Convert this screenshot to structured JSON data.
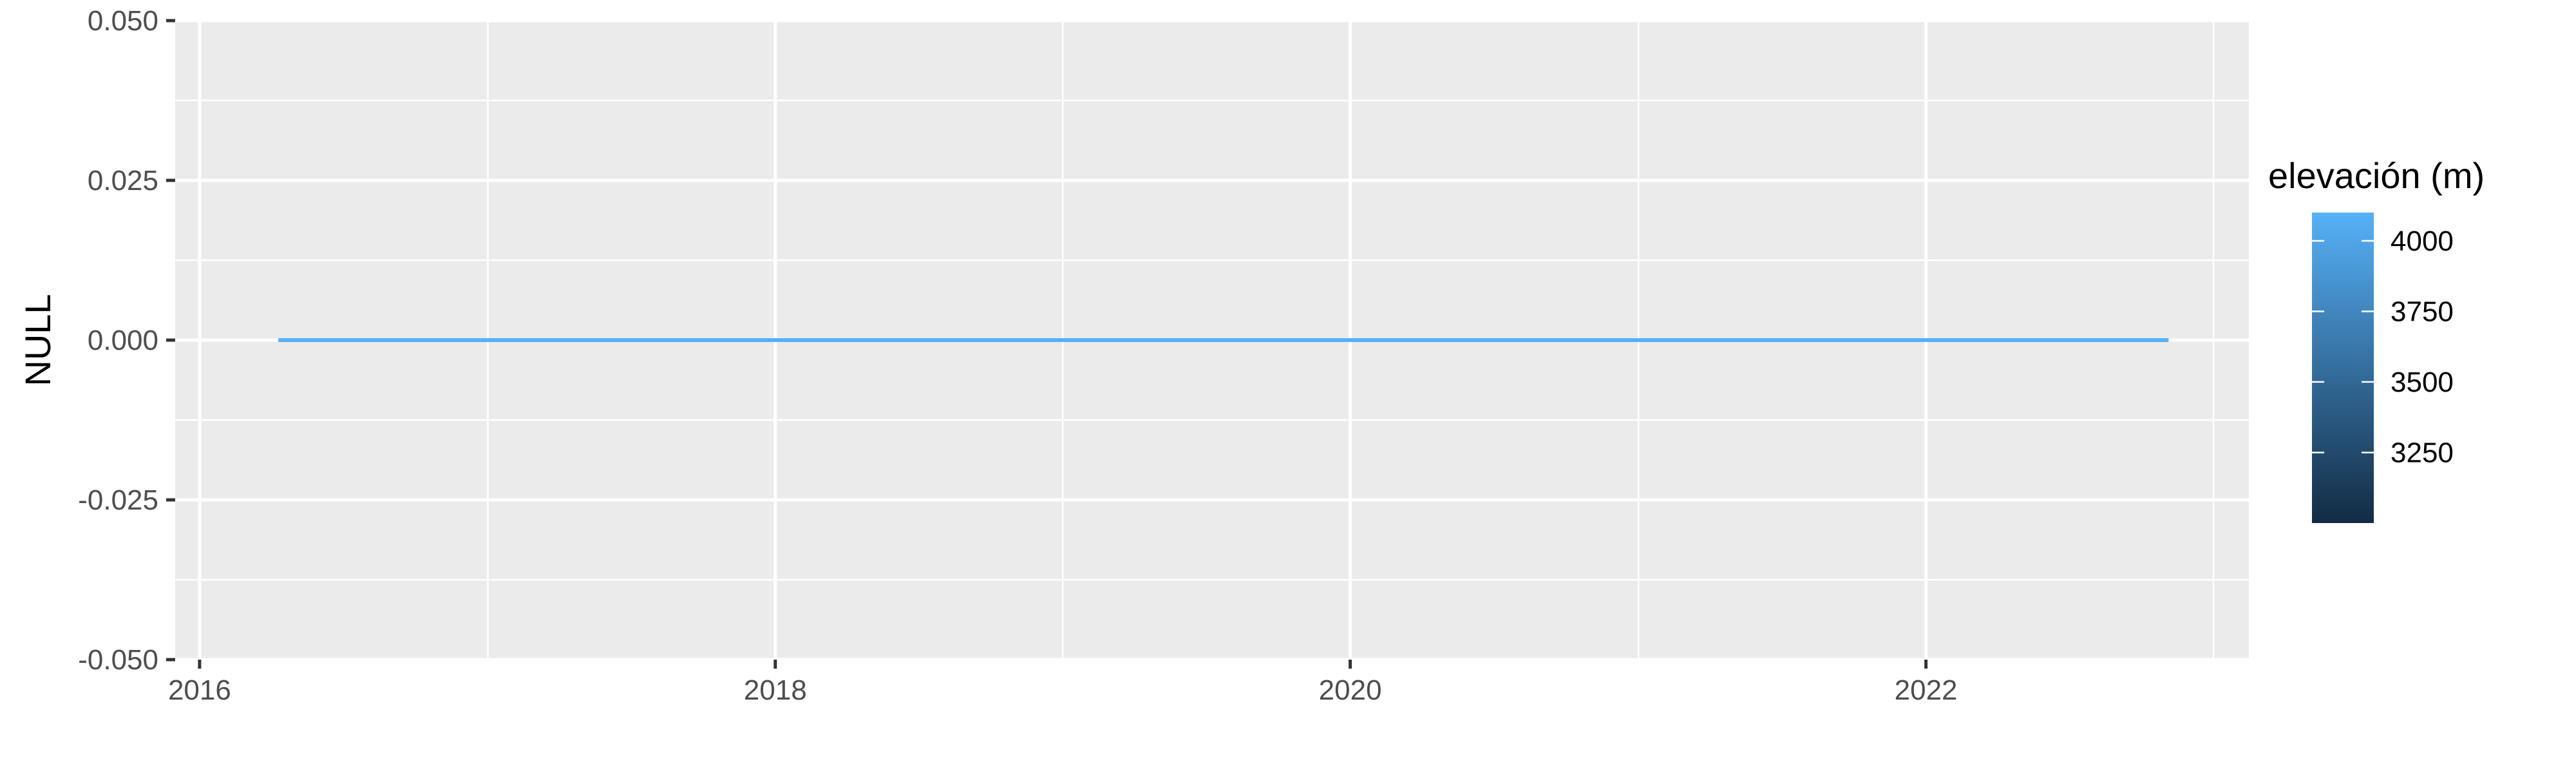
{
  "chart_data": {
    "type": "line",
    "title": "",
    "xlabel": "",
    "ylabel": "NULL",
    "x_type": "date",
    "xlim": [
      "2015-12-01",
      "2023-02-15"
    ],
    "ylim": [
      -0.05,
      0.05
    ],
    "x_ticks": [
      {
        "value": "2016-01-01",
        "label": "2016"
      },
      {
        "value": "2018-01-01",
        "label": "2018"
      },
      {
        "value": "2020-01-01",
        "label": "2020"
      },
      {
        "value": "2022-01-01",
        "label": "2022"
      }
    ],
    "y_ticks": [
      {
        "value": 0.05,
        "label": "0.050"
      },
      {
        "value": 0.025,
        "label": "0.025"
      },
      {
        "value": 0.0,
        "label": "0.000"
      },
      {
        "value": -0.025,
        "label": "-0.025"
      },
      {
        "value": -0.05,
        "label": "-0.050"
      }
    ],
    "grid": true,
    "series": [
      {
        "x": [
          "2016-04-10",
          "2022-11-05"
        ],
        "y": [
          0,
          0
        ],
        "color": "#56B1F7"
      }
    ],
    "legend": {
      "position": "right",
      "title": "elevación (m)",
      "type": "colorbar",
      "range": [
        3000,
        4100
      ],
      "ticks": [
        {
          "value": 4000,
          "label": "4000"
        },
        {
          "value": 3750,
          "label": "3750"
        },
        {
          "value": 3500,
          "label": "3500"
        },
        {
          "value": 3250,
          "label": "3250"
        }
      ],
      "color_low": "#132B43",
      "color_high": "#56B1F7"
    },
    "panel_background": "#EBEBEB",
    "grid_color": "#FFFFFF"
  }
}
